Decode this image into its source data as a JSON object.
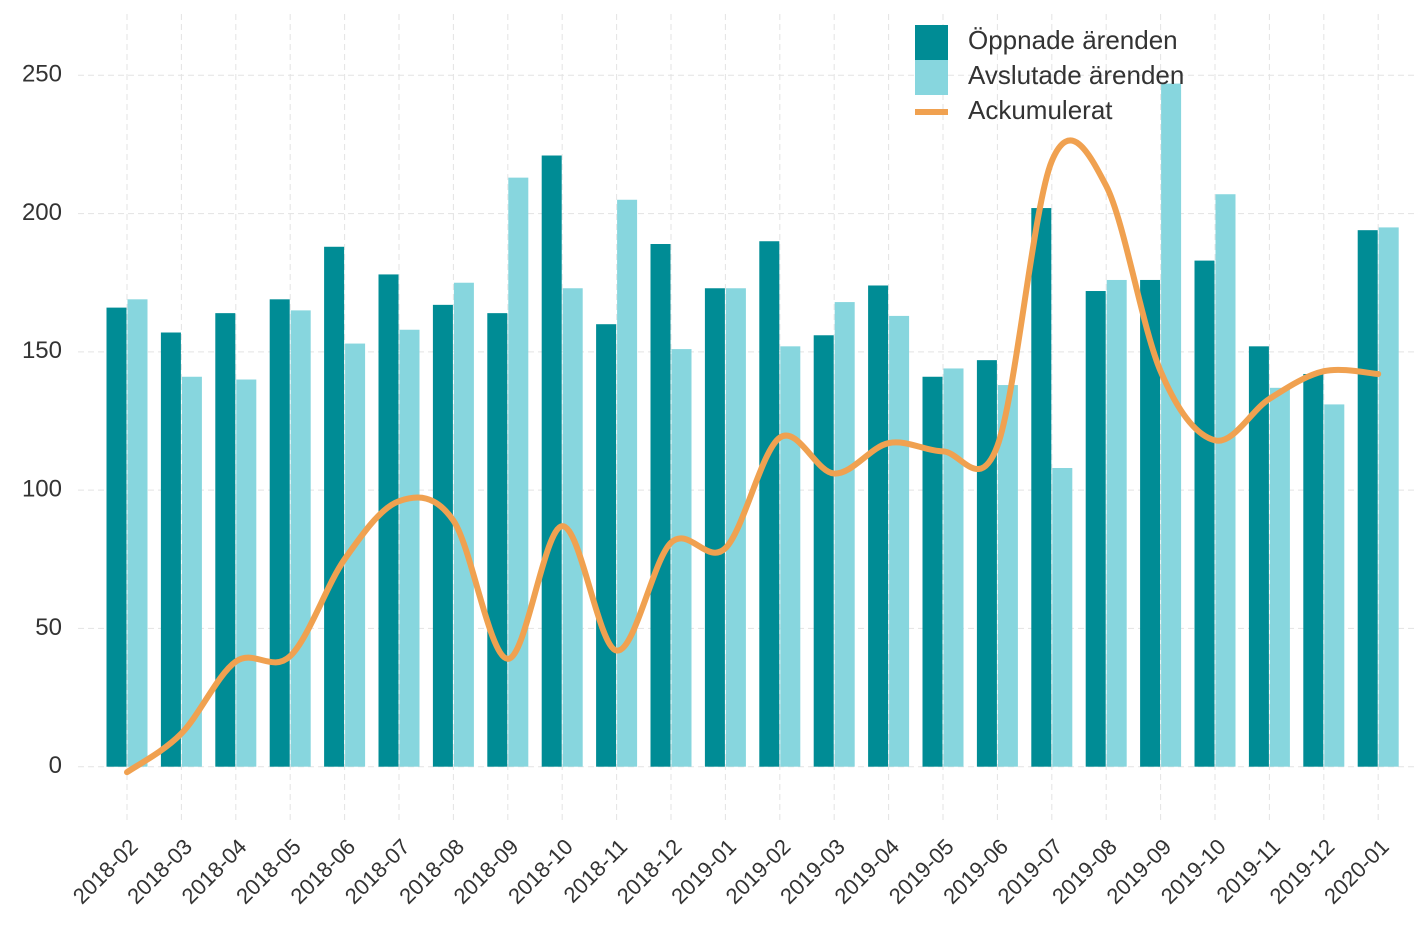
{
  "chart_data": {
    "type": "bar",
    "categories": [
      "2018-02",
      "2018-03",
      "2018-04",
      "2018-05",
      "2018-06",
      "2018-07",
      "2018-08",
      "2018-09",
      "2018-10",
      "2018-11",
      "2018-12",
      "2019-01",
      "2019-02",
      "2019-03",
      "2019-04",
      "2019-05",
      "2019-06",
      "2019-07",
      "2019-08",
      "2019-09",
      "2019-10",
      "2019-11",
      "2019-12",
      "2020-01"
    ],
    "series": [
      {
        "name": "Öppnade ärenden",
        "color": "#008c95",
        "values": [
          166,
          157,
          164,
          169,
          188,
          178,
          167,
          164,
          221,
          160,
          189,
          173,
          190,
          156,
          174,
          141,
          147,
          202,
          172,
          176,
          183,
          152,
          142,
          194
        ]
      },
      {
        "name": "Avslutade ärenden",
        "color": "#87d6de",
        "values": [
          169,
          141,
          140,
          165,
          153,
          158,
          175,
          213,
          173,
          205,
          151,
          173,
          152,
          168,
          163,
          144,
          138,
          108,
          176,
          247,
          207,
          137,
          131,
          195
        ]
      },
      {
        "name": "Ackumulerat",
        "color": "#f0a150",
        "type": "line",
        "smooth": true,
        "values": [
          -2,
          12,
          38,
          40,
          75,
          96,
          89,
          39,
          87,
          42,
          81,
          79,
          119,
          106,
          117,
          114,
          116,
          219,
          210,
          143,
          118,
          133,
          143,
          142
        ]
      }
    ],
    "ylim": [
      -20,
      270
    ],
    "yticks": [
      0,
      50,
      100,
      150,
      200,
      250
    ],
    "grid": true,
    "legend": "upper right"
  }
}
